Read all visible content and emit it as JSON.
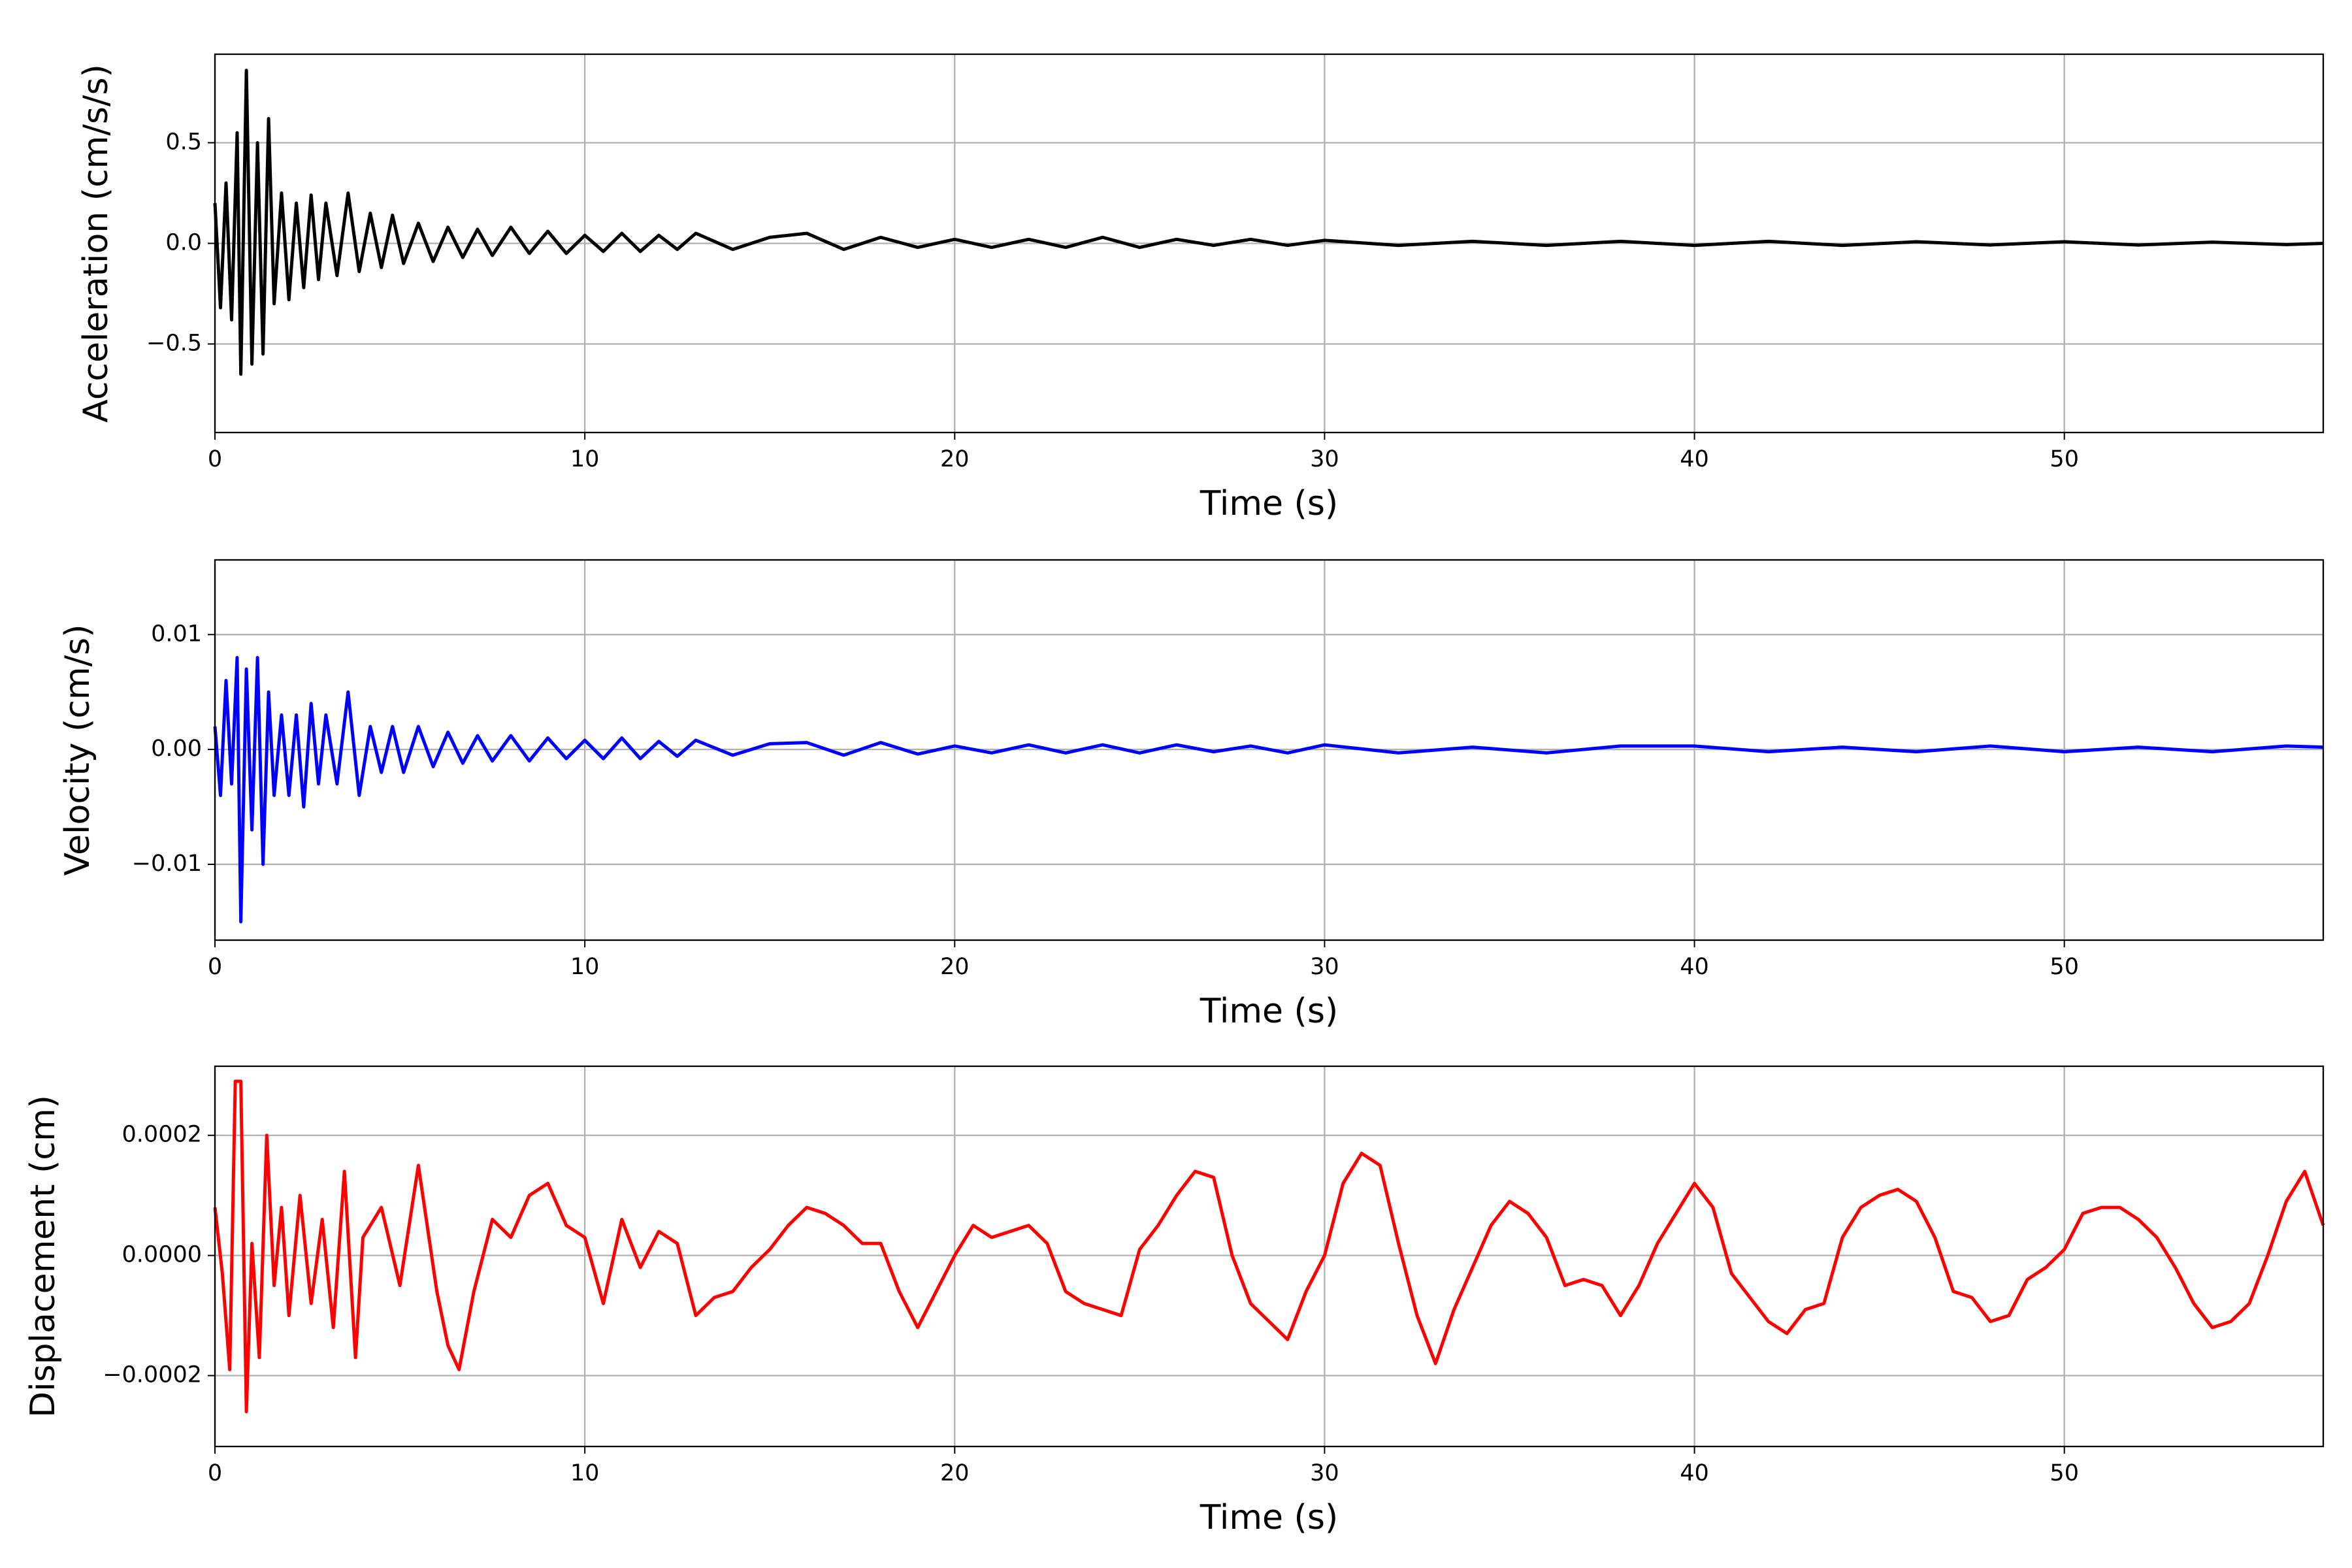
{
  "chart_data": [
    {
      "type": "line",
      "xlabel": "Time (s)",
      "ylabel": "Acceleration (cm/s/s)",
      "color": "#000000",
      "x": [
        0,
        0.15,
        0.3,
        0.45,
        0.6,
        0.7,
        0.85,
        1.0,
        1.15,
        1.3,
        1.45,
        1.6,
        1.8,
        2.0,
        2.2,
        2.4,
        2.6,
        2.8,
        3.0,
        3.3,
        3.6,
        3.9,
        4.2,
        4.5,
        4.8,
        5.1,
        5.5,
        5.9,
        6.3,
        6.7,
        7.1,
        7.5,
        8,
        8.5,
        9,
        9.5,
        10,
        10.5,
        11,
        11.5,
        12,
        12.5,
        13,
        14,
        15,
        16,
        17,
        18,
        19,
        20,
        21,
        22,
        23,
        24,
        25,
        26,
        27,
        28,
        29,
        30,
        32,
        34,
        36,
        38,
        40,
        42,
        44,
        46,
        48,
        50,
        52,
        54,
        56,
        57
      ],
      "values": [
        0.2,
        -0.32,
        0.3,
        -0.38,
        0.55,
        -0.65,
        0.86,
        -0.6,
        0.5,
        -0.55,
        0.62,
        -0.3,
        0.25,
        -0.28,
        0.2,
        -0.22,
        0.24,
        -0.18,
        0.2,
        -0.16,
        0.25,
        -0.14,
        0.15,
        -0.12,
        0.14,
        -0.1,
        0.1,
        -0.09,
        0.08,
        -0.07,
        0.07,
        -0.06,
        0.08,
        -0.05,
        0.06,
        -0.05,
        0.04,
        -0.04,
        0.05,
        -0.04,
        0.04,
        -0.03,
        0.05,
        -0.03,
        0.03,
        0.05,
        -0.03,
        0.03,
        -0.02,
        0.02,
        -0.02,
        0.02,
        -0.02,
        0.03,
        -0.02,
        0.02,
        -0.01,
        0.02,
        -0.01,
        0.015,
        -0.01,
        0.01,
        -0.01,
        0.01,
        -0.01,
        0.01,
        -0.01,
        0.008,
        -0.008,
        0.008,
        -0.008,
        0.006,
        -0.006,
        0
      ],
      "xlim": [
        0,
        57
      ],
      "xticks": [
        0,
        10,
        20,
        30,
        40,
        50
      ],
      "ylim": [
        -0.94,
        0.94
      ],
      "yticks": [
        {
          "value": -0.5,
          "label": "−0.5"
        },
        {
          "value": 0,
          "label": "0.0"
        },
        {
          "value": 0.5,
          "label": "0.5"
        }
      ],
      "grid": true
    },
    {
      "type": "line",
      "xlabel": "Time (s)",
      "ylabel": "Velocity (cm/s)",
      "color": "#0000ff",
      "x": [
        0,
        0.15,
        0.3,
        0.45,
        0.6,
        0.7,
        0.85,
        1.0,
        1.15,
        1.3,
        1.45,
        1.6,
        1.8,
        2.0,
        2.2,
        2.4,
        2.6,
        2.8,
        3.0,
        3.3,
        3.6,
        3.9,
        4.2,
        4.5,
        4.8,
        5.1,
        5.5,
        5.9,
        6.3,
        6.7,
        7.1,
        7.5,
        8,
        8.5,
        9,
        9.5,
        10,
        10.5,
        11,
        11.5,
        12,
        12.5,
        13,
        14,
        15,
        16,
        17,
        18,
        19,
        20,
        21,
        22,
        23,
        24,
        25,
        26,
        27,
        28,
        29,
        30,
        32,
        34,
        36,
        38,
        40,
        42,
        44,
        46,
        48,
        50,
        52,
        54,
        56,
        57
      ],
      "values": [
        0.002,
        -0.004,
        0.006,
        -0.003,
        0.008,
        -0.015,
        0.007,
        -0.007,
        0.008,
        -0.01,
        0.005,
        -0.004,
        0.003,
        -0.004,
        0.003,
        -0.005,
        0.004,
        -0.003,
        0.003,
        -0.003,
        0.005,
        -0.004,
        0.002,
        -0.002,
        0.002,
        -0.002,
        0.002,
        -0.0015,
        0.0015,
        -0.0012,
        0.0012,
        -0.001,
        0.0012,
        -0.001,
        0.001,
        -0.0008,
        0.0008,
        -0.0008,
        0.001,
        -0.0008,
        0.0007,
        -0.0006,
        0.0008,
        -0.0005,
        0.0005,
        0.0006,
        -0.0005,
        0.0006,
        -0.0004,
        0.0003,
        -0.0003,
        0.0004,
        -0.0003,
        0.0004,
        -0.0003,
        0.0004,
        -0.0002,
        0.0003,
        -0.0003,
        0.0004,
        -0.0003,
        0.0002,
        -0.0003,
        0.0003,
        0.0003,
        -0.0002,
        0.0002,
        -0.0002,
        0.0003,
        -0.0002,
        0.0002,
        -0.0002,
        0.0003,
        0.0002
      ],
      "xlim": [
        0,
        57
      ],
      "xticks": [
        0,
        10,
        20,
        30,
        40,
        50
      ],
      "ylim": [
        -0.0166,
        0.0165
      ],
      "yticks": [
        {
          "value": -0.01,
          "label": "−0.01"
        },
        {
          "value": 0,
          "label": "0.00"
        },
        0.01
      ],
      "grid": true
    },
    {
      "type": "line",
      "xlabel": "Time (s)",
      "ylabel": "Displacement (cm)",
      "color": "#ff0000",
      "x": [
        0,
        0.2,
        0.4,
        0.55,
        0.7,
        0.85,
        1.0,
        1.2,
        1.4,
        1.6,
        1.8,
        2.0,
        2.3,
        2.6,
        2.9,
        3.2,
        3.5,
        3.8,
        4,
        4.5,
        5,
        5.5,
        6,
        6.3,
        6.6,
        7,
        7.5,
        8,
        8.5,
        9,
        9.5,
        10,
        10.5,
        11,
        11.5,
        12,
        12.5,
        13,
        13.5,
        14,
        14.5,
        15,
        15.5,
        16,
        16.5,
        17,
        17.5,
        18,
        18.5,
        19,
        19.5,
        20,
        20.5,
        21,
        21.5,
        22,
        22.5,
        23,
        23.5,
        24,
        24.5,
        25,
        25.5,
        26,
        26.5,
        27,
        27.5,
        28,
        28.5,
        29,
        29.5,
        30,
        30.5,
        31,
        31.5,
        32,
        32.5,
        33,
        33.5,
        34,
        34.5,
        35,
        35.5,
        36,
        36.5,
        37,
        37.5,
        38,
        38.5,
        39,
        39.5,
        40,
        40.5,
        41,
        41.5,
        42,
        42.5,
        43,
        43.5,
        44,
        44.5,
        45,
        45.5,
        46,
        46.5,
        47,
        47.5,
        48,
        48.5,
        49,
        49.5,
        50,
        50.5,
        51,
        51.5,
        52,
        52.5,
        53,
        53.5,
        54,
        54.5,
        55,
        55.5,
        56,
        56.5,
        57
      ],
      "values": [
        8e-05,
        -3e-05,
        -0.00019,
        0.00029,
        0.00029,
        -0.00026,
        2e-05,
        -0.00017,
        0.0002,
        -5e-05,
        8e-05,
        -0.0001,
        0.0001,
        -8e-05,
        6e-05,
        -0.00012,
        0.00014,
        -0.00017,
        3e-05,
        8e-05,
        -5e-05,
        0.00015,
        -6e-05,
        -0.00015,
        -0.00019,
        -6e-05,
        6e-05,
        3e-05,
        0.0001,
        0.00012,
        5e-05,
        3e-05,
        -8e-05,
        6e-05,
        -2e-05,
        4e-05,
        2e-05,
        -0.0001,
        -7e-05,
        -6e-05,
        -2e-05,
        1e-05,
        5e-05,
        8e-05,
        7e-05,
        5e-05,
        2e-05,
        2e-05,
        -6e-05,
        -0.00012,
        -6e-05,
        0,
        5e-05,
        3e-05,
        4e-05,
        5e-05,
        2e-05,
        -6e-05,
        -8e-05,
        -9e-05,
        -0.0001,
        1e-05,
        5e-05,
        0.0001,
        0.00014,
        0.00013,
        0,
        -8e-05,
        -0.00011,
        -0.00014,
        -6e-05,
        0,
        0.00012,
        0.00017,
        0.00015,
        2e-05,
        -0.0001,
        -0.00018,
        -9e-05,
        -2e-05,
        5e-05,
        9e-05,
        7e-05,
        3e-05,
        -5e-05,
        -4e-05,
        -5e-05,
        -0.0001,
        -5e-05,
        2e-05,
        7e-05,
        0.00012,
        8e-05,
        -3e-05,
        -7e-05,
        -0.00011,
        -0.00013,
        -9e-05,
        -8e-05,
        3e-05,
        8e-05,
        0.0001,
        0.00011,
        9e-05,
        3e-05,
        -6e-05,
        -7e-05,
        -0.00011,
        -0.0001,
        -4e-05,
        -2e-05,
        1e-05,
        7e-05,
        8e-05,
        8e-05,
        6e-05,
        3e-05,
        -2e-05,
        -8e-05,
        -0.00012,
        -0.00011,
        -8e-05,
        0,
        9e-05,
        0.00014,
        5e-05
      ],
      "xlim": [
        0,
        57
      ],
      "xticks": [
        0,
        10,
        20,
        30,
        40,
        50
      ],
      "ylim": [
        -0.000318,
        0.000315
      ],
      "yticks": [
        {
          "value": -0.0002,
          "label": "−0.0002"
        },
        {
          "value": 0,
          "label": "0.0000"
        },
        0.0002
      ],
      "grid": true
    }
  ]
}
